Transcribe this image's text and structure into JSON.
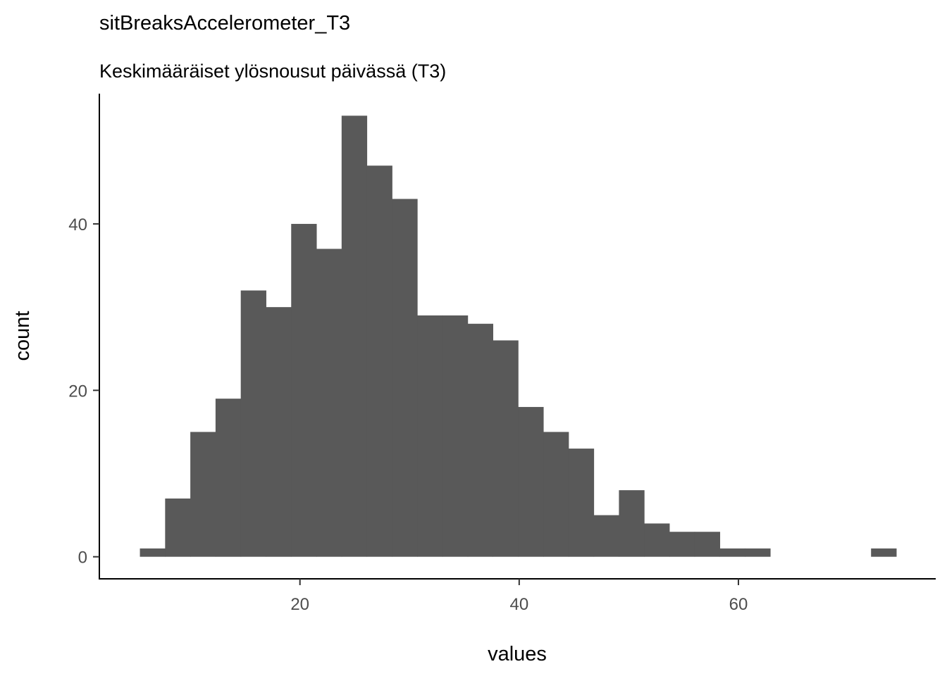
{
  "chart_data": {
    "type": "bar",
    "title": "sitBreaksAccelerometer_T3",
    "subtitle": "Keskimääräiset ylösnousut päivässä (T3)",
    "xlabel": "values",
    "ylabel": "count",
    "bin_width": 2.3,
    "bins": [
      {
        "x0": 5.4,
        "x1": 7.7,
        "count": 1
      },
      {
        "x0": 7.7,
        "x1": 10.0,
        "count": 7
      },
      {
        "x0": 10.0,
        "x1": 12.3,
        "count": 15
      },
      {
        "x0": 12.3,
        "x1": 14.6,
        "count": 19
      },
      {
        "x0": 14.6,
        "x1": 16.9,
        "count": 32
      },
      {
        "x0": 16.9,
        "x1": 19.2,
        "count": 30
      },
      {
        "x0": 19.2,
        "x1": 21.5,
        "count": 40
      },
      {
        "x0": 21.5,
        "x1": 23.8,
        "count": 37
      },
      {
        "x0": 23.8,
        "x1": 26.1,
        "count": 53
      },
      {
        "x0": 26.1,
        "x1": 28.4,
        "count": 47
      },
      {
        "x0": 28.4,
        "x1": 30.7,
        "count": 43
      },
      {
        "x0": 30.7,
        "x1": 33.0,
        "count": 29
      },
      {
        "x0": 33.0,
        "x1": 35.3,
        "count": 29
      },
      {
        "x0": 35.3,
        "x1": 37.6,
        "count": 28
      },
      {
        "x0": 37.6,
        "x1": 39.9,
        "count": 26
      },
      {
        "x0": 39.9,
        "x1": 42.2,
        "count": 18
      },
      {
        "x0": 42.2,
        "x1": 44.5,
        "count": 15
      },
      {
        "x0": 44.5,
        "x1": 46.8,
        "count": 13
      },
      {
        "x0": 46.8,
        "x1": 49.1,
        "count": 5
      },
      {
        "x0": 49.1,
        "x1": 51.4,
        "count": 8
      },
      {
        "x0": 51.4,
        "x1": 53.7,
        "count": 4
      },
      {
        "x0": 53.7,
        "x1": 56.0,
        "count": 3
      },
      {
        "x0": 56.0,
        "x1": 58.3,
        "count": 3
      },
      {
        "x0": 58.3,
        "x1": 60.6,
        "count": 1
      },
      {
        "x0": 60.6,
        "x1": 62.9,
        "count": 1
      },
      {
        "x0": 62.9,
        "x1": 65.2,
        "count": 0
      },
      {
        "x0": 65.2,
        "x1": 67.5,
        "count": 0
      },
      {
        "x0": 67.5,
        "x1": 69.8,
        "count": 0
      },
      {
        "x0": 69.8,
        "x1": 72.1,
        "count": 0
      },
      {
        "x0": 72.1,
        "x1": 74.4,
        "count": 1
      }
    ],
    "x_ticks": [
      20,
      40,
      60
    ],
    "y_ticks": [
      0,
      20,
      40
    ],
    "xlim": [
      1.7,
      78.0
    ],
    "ylim": [
      -2.65,
      55.65
    ],
    "grid": false,
    "legend": "none",
    "bar_color": "#595959"
  }
}
